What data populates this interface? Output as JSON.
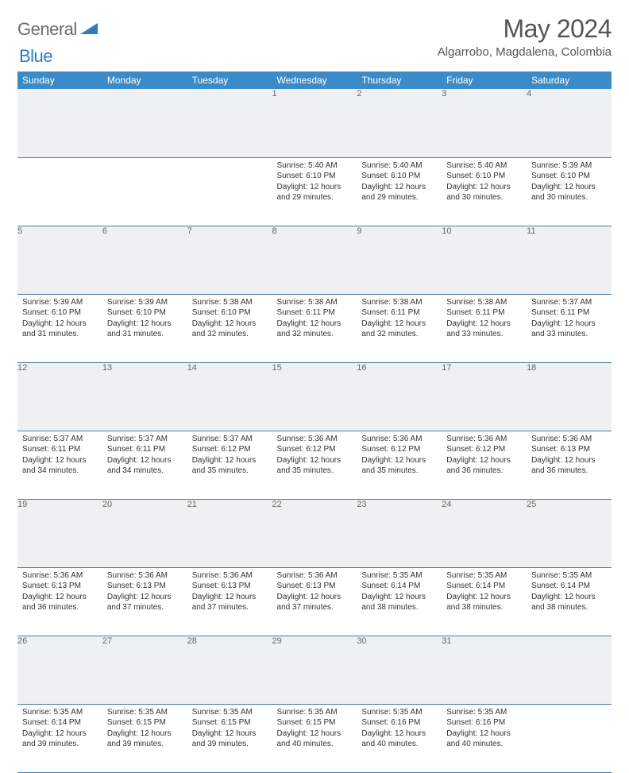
{
  "logo": {
    "word1": "General",
    "word2": "Blue"
  },
  "title": "May 2024",
  "location": "Algarrobo, Magdalena, Colombia",
  "colors": {
    "header_bg": "#3b8bc9",
    "header_fg": "#ffffff",
    "daynum_bg": "#eef0f2",
    "daynum_fg": "#666666",
    "row_border": "#4a7ba6",
    "logo_gray": "#6b6b6b",
    "logo_blue": "#2f7bbf"
  },
  "fonts": {
    "title_size": 32,
    "location_size": 15,
    "th_size": 12,
    "cell_size": 10
  },
  "typography": {
    "family": "Arial"
  },
  "weekday_labels": [
    "Sunday",
    "Monday",
    "Tuesday",
    "Wednesday",
    "Thursday",
    "Friday",
    "Saturday"
  ],
  "weeks": [
    [
      null,
      null,
      null,
      {
        "n": "1",
        "sr": "5:40 AM",
        "ss": "6:10 PM",
        "dl": "12 hours and 29 minutes."
      },
      {
        "n": "2",
        "sr": "5:40 AM",
        "ss": "6:10 PM",
        "dl": "12 hours and 29 minutes."
      },
      {
        "n": "3",
        "sr": "5:40 AM",
        "ss": "6:10 PM",
        "dl": "12 hours and 30 minutes."
      },
      {
        "n": "4",
        "sr": "5:39 AM",
        "ss": "6:10 PM",
        "dl": "12 hours and 30 minutes."
      }
    ],
    [
      {
        "n": "5",
        "sr": "5:39 AM",
        "ss": "6:10 PM",
        "dl": "12 hours and 31 minutes."
      },
      {
        "n": "6",
        "sr": "5:39 AM",
        "ss": "6:10 PM",
        "dl": "12 hours and 31 minutes."
      },
      {
        "n": "7",
        "sr": "5:38 AM",
        "ss": "6:10 PM",
        "dl": "12 hours and 32 minutes."
      },
      {
        "n": "8",
        "sr": "5:38 AM",
        "ss": "6:11 PM",
        "dl": "12 hours and 32 minutes."
      },
      {
        "n": "9",
        "sr": "5:38 AM",
        "ss": "6:11 PM",
        "dl": "12 hours and 32 minutes."
      },
      {
        "n": "10",
        "sr": "5:38 AM",
        "ss": "6:11 PM",
        "dl": "12 hours and 33 minutes."
      },
      {
        "n": "11",
        "sr": "5:37 AM",
        "ss": "6:11 PM",
        "dl": "12 hours and 33 minutes."
      }
    ],
    [
      {
        "n": "12",
        "sr": "5:37 AM",
        "ss": "6:11 PM",
        "dl": "12 hours and 34 minutes."
      },
      {
        "n": "13",
        "sr": "5:37 AM",
        "ss": "6:11 PM",
        "dl": "12 hours and 34 minutes."
      },
      {
        "n": "14",
        "sr": "5:37 AM",
        "ss": "6:12 PM",
        "dl": "12 hours and 35 minutes."
      },
      {
        "n": "15",
        "sr": "5:36 AM",
        "ss": "6:12 PM",
        "dl": "12 hours and 35 minutes."
      },
      {
        "n": "16",
        "sr": "5:36 AM",
        "ss": "6:12 PM",
        "dl": "12 hours and 35 minutes."
      },
      {
        "n": "17",
        "sr": "5:36 AM",
        "ss": "6:12 PM",
        "dl": "12 hours and 36 minutes."
      },
      {
        "n": "18",
        "sr": "5:36 AM",
        "ss": "6:13 PM",
        "dl": "12 hours and 36 minutes."
      }
    ],
    [
      {
        "n": "19",
        "sr": "5:36 AM",
        "ss": "6:13 PM",
        "dl": "12 hours and 36 minutes."
      },
      {
        "n": "20",
        "sr": "5:36 AM",
        "ss": "6:13 PM",
        "dl": "12 hours and 37 minutes."
      },
      {
        "n": "21",
        "sr": "5:36 AM",
        "ss": "6:13 PM",
        "dl": "12 hours and 37 minutes."
      },
      {
        "n": "22",
        "sr": "5:36 AM",
        "ss": "6:13 PM",
        "dl": "12 hours and 37 minutes."
      },
      {
        "n": "23",
        "sr": "5:35 AM",
        "ss": "6:14 PM",
        "dl": "12 hours and 38 minutes."
      },
      {
        "n": "24",
        "sr": "5:35 AM",
        "ss": "6:14 PM",
        "dl": "12 hours and 38 minutes."
      },
      {
        "n": "25",
        "sr": "5:35 AM",
        "ss": "6:14 PM",
        "dl": "12 hours and 38 minutes."
      }
    ],
    [
      {
        "n": "26",
        "sr": "5:35 AM",
        "ss": "6:14 PM",
        "dl": "12 hours and 39 minutes."
      },
      {
        "n": "27",
        "sr": "5:35 AM",
        "ss": "6:15 PM",
        "dl": "12 hours and 39 minutes."
      },
      {
        "n": "28",
        "sr": "5:35 AM",
        "ss": "6:15 PM",
        "dl": "12 hours and 39 minutes."
      },
      {
        "n": "29",
        "sr": "5:35 AM",
        "ss": "6:15 PM",
        "dl": "12 hours and 40 minutes."
      },
      {
        "n": "30",
        "sr": "5:35 AM",
        "ss": "6:16 PM",
        "dl": "12 hours and 40 minutes."
      },
      {
        "n": "31",
        "sr": "5:35 AM",
        "ss": "6:16 PM",
        "dl": "12 hours and 40 minutes."
      },
      null
    ]
  ],
  "labels": {
    "sunrise": "Sunrise:",
    "sunset": "Sunset:",
    "daylight": "Daylight:"
  }
}
